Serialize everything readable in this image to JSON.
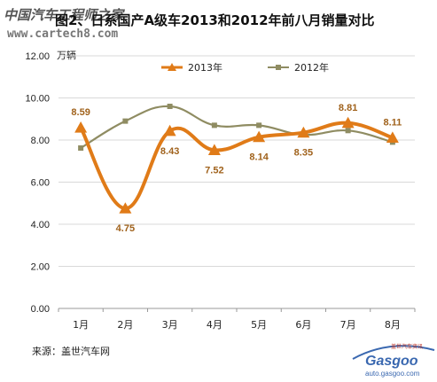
{
  "watermark": {
    "cn": "中国汽车工程师之家",
    "url": "www.cartech8.com"
  },
  "chart_data": {
    "type": "line",
    "title": "图2、日系国产A级车2013和2012年前八月销量对比",
    "unit": "万辆",
    "categories": [
      "1月",
      "2月",
      "3月",
      "4月",
      "5月",
      "6月",
      "7月",
      "8月"
    ],
    "yticks": [
      "0.00",
      "2.00",
      "4.00",
      "6.00",
      "8.00",
      "10.00",
      "12.00"
    ],
    "ylim": [
      0,
      12
    ],
    "series": [
      {
        "name": "2013年",
        "values": [
          8.59,
          4.75,
          8.43,
          7.52,
          8.14,
          8.35,
          8.81,
          8.11
        ],
        "labels": [
          "8.59",
          "4.75",
          "8.43",
          "7.52",
          "8.14",
          "8.35",
          "8.81",
          "8.11"
        ],
        "color": "#e07b18",
        "marker": "triangle",
        "smooth": true
      },
      {
        "name": "2012年",
        "values": [
          7.62,
          8.9,
          9.6,
          8.7,
          8.7,
          8.25,
          8.45,
          7.9
        ],
        "color": "#8f8c62",
        "marker": "square",
        "smooth": true
      }
    ],
    "grid": true,
    "legend_position": "top"
  },
  "source": "来源：盖世汽车网",
  "logo": {
    "brand": "Gasgoo",
    "tagline": "盖世汽车资讯",
    "url": "auto.gasgoo.com"
  }
}
